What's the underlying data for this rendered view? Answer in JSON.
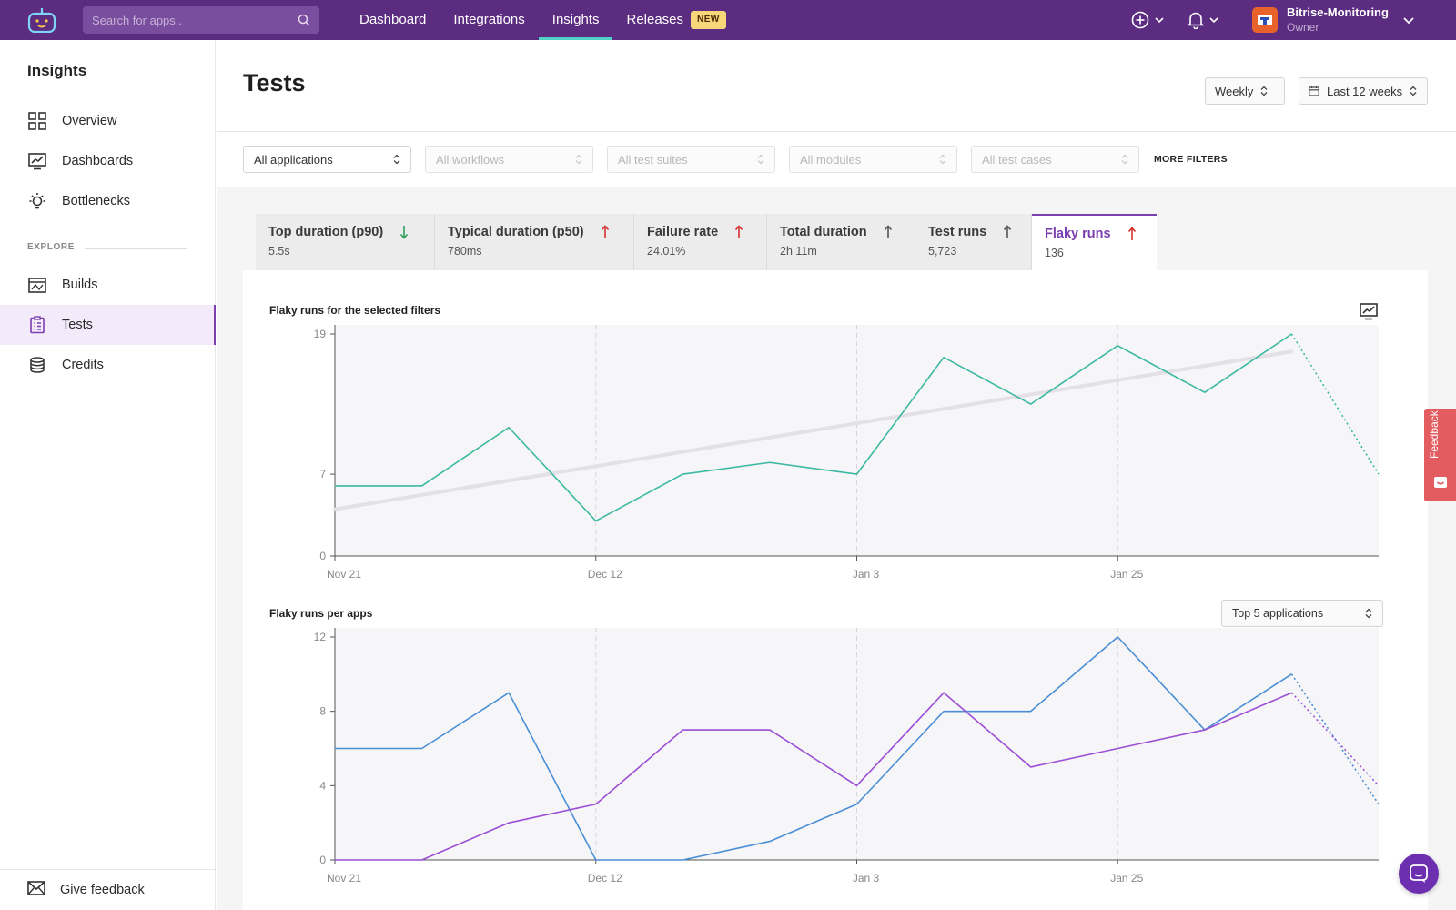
{
  "topbar": {
    "search_placeholder": "Search for apps..",
    "nav": [
      {
        "label": "Dashboard"
      },
      {
        "label": "Integrations"
      },
      {
        "label": "Insights"
      },
      {
        "label": "Releases",
        "badge": "NEW"
      }
    ],
    "active_nav": "Insights",
    "account_name": "Bitrise-Monitoring",
    "account_role": "Owner"
  },
  "sidebar": {
    "title": "Insights",
    "items": [
      {
        "label": "Overview",
        "icon": "grid-icon"
      },
      {
        "label": "Dashboards",
        "icon": "chart-line-icon"
      },
      {
        "label": "Bottlenecks",
        "icon": "lightbulb-icon"
      }
    ],
    "section": "EXPLORE",
    "explore_items": [
      {
        "label": "Builds",
        "icon": "builds-icon"
      },
      {
        "label": "Tests",
        "icon": "clipboard-icon",
        "active": true
      },
      {
        "label": "Credits",
        "icon": "coins-icon"
      }
    ],
    "footer": "Give feedback"
  },
  "page": {
    "title": "Tests",
    "interval": "Weekly",
    "range": "Last 12 weeks"
  },
  "filters": {
    "applications": "All applications",
    "workflows": "All workflows",
    "test_suites": "All test suites",
    "modules": "All modules",
    "test_cases": "All test cases",
    "more": "MORE FILTERS"
  },
  "metrics": [
    {
      "label": "Top duration (p90)",
      "value": "5.5s",
      "trend": "down",
      "color": "#2e9e5b"
    },
    {
      "label": "Typical duration (p50)",
      "value": "780ms",
      "trend": "up",
      "color": "#d3322f"
    },
    {
      "label": "Failure rate",
      "value": "24.01%",
      "trend": "up",
      "color": "#d3322f"
    },
    {
      "label": "Total duration",
      "value": "2h 11m",
      "trend": "up",
      "color": "#555555"
    },
    {
      "label": "Test runs",
      "value": "5,723",
      "trend": "up",
      "color": "#555555"
    },
    {
      "label": "Flaky runs",
      "value": "136",
      "trend": "up",
      "color": "#d3322f",
      "active": true
    }
  ],
  "chart1_title": "Flaky runs for the selected filters",
  "chart2_title": "Flaky runs per apps",
  "chart2_selector": "Top 5 applications",
  "feedback_tab": "Feedback",
  "chart_data": [
    {
      "type": "line",
      "title": "Flaky runs for the selected filters",
      "x_tick_labels": [
        "Nov 21",
        "Dec 12",
        "Jan 3",
        "Jan 25"
      ],
      "y_ticks": [
        0,
        7,
        19
      ],
      "ylim": [
        0,
        19
      ],
      "grid": false,
      "series": [
        {
          "values": [
            6,
            6,
            11,
            3,
            7,
            8,
            7,
            17,
            13,
            18,
            14,
            19,
            7
          ],
          "color": "#3bb9a1",
          "last_point_dotted": true
        }
      ],
      "trendline": {
        "start": 4,
        "end": 17.5,
        "color": "#e4e1e6"
      }
    },
    {
      "type": "line",
      "title": "Flaky runs per apps",
      "x_tick_labels": [
        "Nov 21",
        "Dec 12",
        "Jan 3",
        "Jan 25"
      ],
      "y_ticks": [
        0,
        4,
        8,
        12
      ],
      "ylim": [
        0,
        12
      ],
      "grid": false,
      "series": [
        {
          "values": [
            6,
            6,
            9,
            0,
            0,
            1,
            3,
            8,
            8,
            12,
            7,
            10,
            3
          ],
          "color": "#4a8fd6",
          "last_point_dotted": true
        },
        {
          "values": [
            0,
            0,
            2,
            3,
            7,
            7,
            4,
            9,
            5,
            6,
            7,
            9,
            4
          ],
          "color": "#9b4fd6",
          "last_point_dotted": true
        }
      ]
    }
  ]
}
